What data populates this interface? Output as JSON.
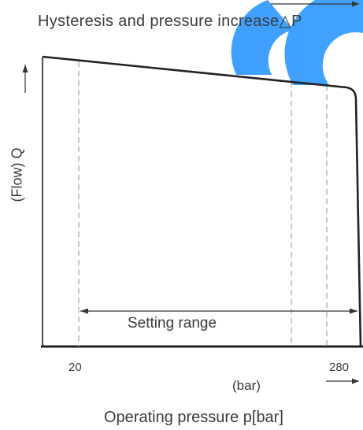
{
  "title": "Hysteresis and pressure increase△P",
  "y_axis_label": "(Flow) Q",
  "setting_range_label": "Setting range",
  "x_tick_low": "20",
  "x_tick_high": "280",
  "x_unit_label": "(bar)",
  "x_axis_label": "Operating pressure p[bar]",
  "colors": {
    "line": "#222222",
    "dash": "#9a9a9a",
    "text": "#3a3a3a",
    "watermark": "#1e90ff"
  }
}
